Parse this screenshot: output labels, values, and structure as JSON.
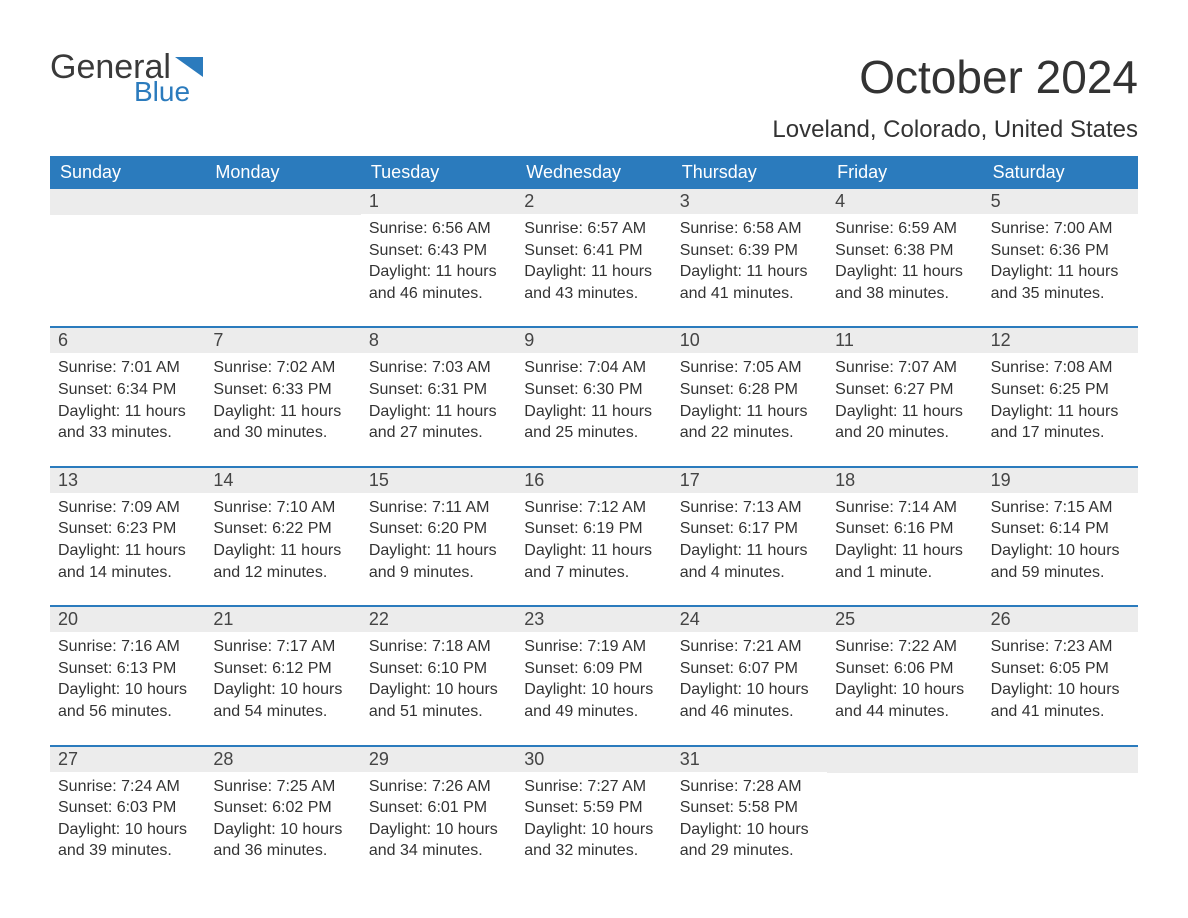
{
  "logo": {
    "general": "General",
    "blue": "Blue",
    "flag_color": "#2b7bbd"
  },
  "title": "October 2024",
  "location": "Loveland, Colorado, United States",
  "colors": {
    "header_bg": "#2b7bbd",
    "daynum_bg": "#ececec",
    "week_border": "#2b7bbd",
    "text": "#333333",
    "bg": "#ffffff"
  },
  "day_names": [
    "Sunday",
    "Monday",
    "Tuesday",
    "Wednesday",
    "Thursday",
    "Friday",
    "Saturday"
  ],
  "weeks": [
    [
      null,
      null,
      {
        "n": "1",
        "sr": "6:56 AM",
        "ss": "6:43 PM",
        "dl": "11 hours and 46 minutes."
      },
      {
        "n": "2",
        "sr": "6:57 AM",
        "ss": "6:41 PM",
        "dl": "11 hours and 43 minutes."
      },
      {
        "n": "3",
        "sr": "6:58 AM",
        "ss": "6:39 PM",
        "dl": "11 hours and 41 minutes."
      },
      {
        "n": "4",
        "sr": "6:59 AM",
        "ss": "6:38 PM",
        "dl": "11 hours and 38 minutes."
      },
      {
        "n": "5",
        "sr": "7:00 AM",
        "ss": "6:36 PM",
        "dl": "11 hours and 35 minutes."
      }
    ],
    [
      {
        "n": "6",
        "sr": "7:01 AM",
        "ss": "6:34 PM",
        "dl": "11 hours and 33 minutes."
      },
      {
        "n": "7",
        "sr": "7:02 AM",
        "ss": "6:33 PM",
        "dl": "11 hours and 30 minutes."
      },
      {
        "n": "8",
        "sr": "7:03 AM",
        "ss": "6:31 PM",
        "dl": "11 hours and 27 minutes."
      },
      {
        "n": "9",
        "sr": "7:04 AM",
        "ss": "6:30 PM",
        "dl": "11 hours and 25 minutes."
      },
      {
        "n": "10",
        "sr": "7:05 AM",
        "ss": "6:28 PM",
        "dl": "11 hours and 22 minutes."
      },
      {
        "n": "11",
        "sr": "7:07 AM",
        "ss": "6:27 PM",
        "dl": "11 hours and 20 minutes."
      },
      {
        "n": "12",
        "sr": "7:08 AM",
        "ss": "6:25 PM",
        "dl": "11 hours and 17 minutes."
      }
    ],
    [
      {
        "n": "13",
        "sr": "7:09 AM",
        "ss": "6:23 PM",
        "dl": "11 hours and 14 minutes."
      },
      {
        "n": "14",
        "sr": "7:10 AM",
        "ss": "6:22 PM",
        "dl": "11 hours and 12 minutes."
      },
      {
        "n": "15",
        "sr": "7:11 AM",
        "ss": "6:20 PM",
        "dl": "11 hours and 9 minutes."
      },
      {
        "n": "16",
        "sr": "7:12 AM",
        "ss": "6:19 PM",
        "dl": "11 hours and 7 minutes."
      },
      {
        "n": "17",
        "sr": "7:13 AM",
        "ss": "6:17 PM",
        "dl": "11 hours and 4 minutes."
      },
      {
        "n": "18",
        "sr": "7:14 AM",
        "ss": "6:16 PM",
        "dl": "11 hours and 1 minute."
      },
      {
        "n": "19",
        "sr": "7:15 AM",
        "ss": "6:14 PM",
        "dl": "10 hours and 59 minutes."
      }
    ],
    [
      {
        "n": "20",
        "sr": "7:16 AM",
        "ss": "6:13 PM",
        "dl": "10 hours and 56 minutes."
      },
      {
        "n": "21",
        "sr": "7:17 AM",
        "ss": "6:12 PM",
        "dl": "10 hours and 54 minutes."
      },
      {
        "n": "22",
        "sr": "7:18 AM",
        "ss": "6:10 PM",
        "dl": "10 hours and 51 minutes."
      },
      {
        "n": "23",
        "sr": "7:19 AM",
        "ss": "6:09 PM",
        "dl": "10 hours and 49 minutes."
      },
      {
        "n": "24",
        "sr": "7:21 AM",
        "ss": "6:07 PM",
        "dl": "10 hours and 46 minutes."
      },
      {
        "n": "25",
        "sr": "7:22 AM",
        "ss": "6:06 PM",
        "dl": "10 hours and 44 minutes."
      },
      {
        "n": "26",
        "sr": "7:23 AM",
        "ss": "6:05 PM",
        "dl": "10 hours and 41 minutes."
      }
    ],
    [
      {
        "n": "27",
        "sr": "7:24 AM",
        "ss": "6:03 PM",
        "dl": "10 hours and 39 minutes."
      },
      {
        "n": "28",
        "sr": "7:25 AM",
        "ss": "6:02 PM",
        "dl": "10 hours and 36 minutes."
      },
      {
        "n": "29",
        "sr": "7:26 AM",
        "ss": "6:01 PM",
        "dl": "10 hours and 34 minutes."
      },
      {
        "n": "30",
        "sr": "7:27 AM",
        "ss": "5:59 PM",
        "dl": "10 hours and 32 minutes."
      },
      {
        "n": "31",
        "sr": "7:28 AM",
        "ss": "5:58 PM",
        "dl": "10 hours and 29 minutes."
      },
      null,
      null
    ]
  ],
  "labels": {
    "sunrise": "Sunrise:",
    "sunset": "Sunset:",
    "daylight": "Daylight:"
  }
}
